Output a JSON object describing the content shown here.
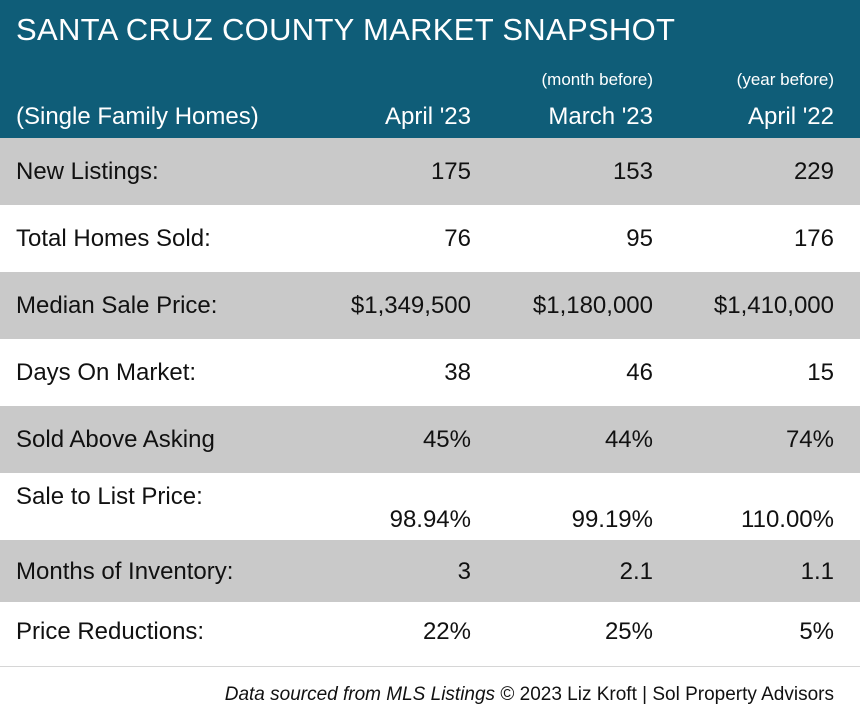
{
  "header": {
    "title": "SANTA CRUZ COUNTY MARKET SNAPSHOT",
    "subtitle": "(Single Family Homes)",
    "columns": [
      {
        "note": "",
        "label": "April '23"
      },
      {
        "note": "(month before)",
        "label": "March '23"
      },
      {
        "note": "(year before)",
        "label": "April '22"
      }
    ]
  },
  "rows": [
    {
      "label": "New Listings:",
      "values": [
        "175",
        "153",
        "229"
      ]
    },
    {
      "label": "Total Homes Sold:",
      "values": [
        "76",
        "95",
        "176"
      ]
    },
    {
      "label": "Median Sale Price:",
      "values": [
        "$1,349,500",
        "$1,180,000",
        "$1,410,000"
      ]
    },
    {
      "label": "Days On Market:",
      "values": [
        "38",
        "46",
        "15"
      ]
    },
    {
      "label": "Sold Above Asking",
      "values": [
        "45%",
        "44%",
        "74%"
      ]
    },
    {
      "label": "Sale to List Price:",
      "values": [
        "98.94%",
        "99.19%",
        "110.00%"
      ]
    },
    {
      "label": "Months of Inventory:",
      "values": [
        "3",
        "2.1",
        "1.1"
      ]
    },
    {
      "label": "Price Reductions:",
      "values": [
        "22%",
        "25%",
        "5%"
      ]
    }
  ],
  "footer": {
    "source": "Data sourced from MLS Listings",
    "credit": "© 2023 Liz Kroft | Sol Property Advisors"
  },
  "colors": {
    "header_bg": "#0f5d78",
    "row_shade": "#c9c9c9"
  }
}
